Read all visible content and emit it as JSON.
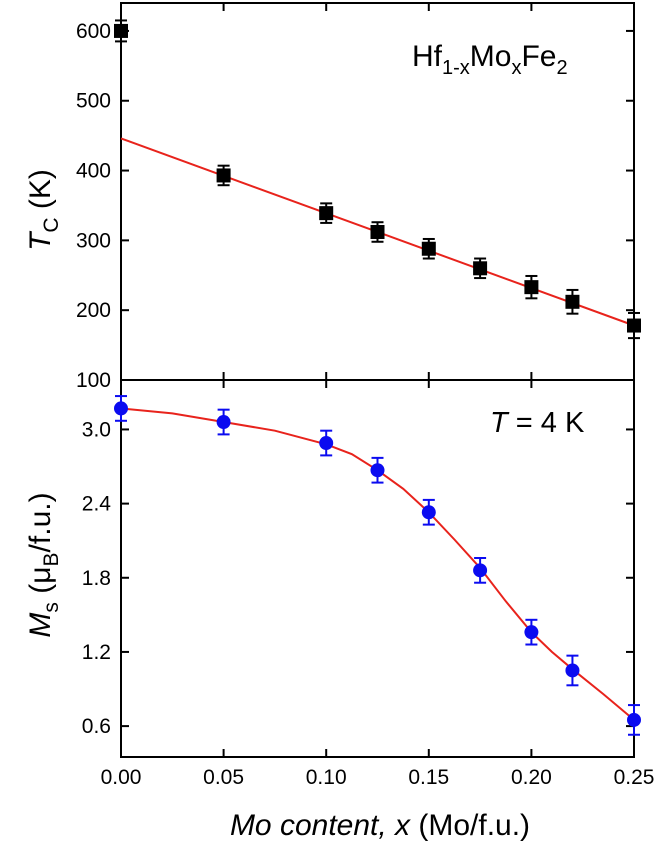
{
  "chart_data": [
    {
      "id": "top",
      "type": "scatter",
      "title": "",
      "annotation": {
        "main": "Hf",
        "sub1": "1-x",
        "mid": "Mo",
        "sub2": "x",
        "tail": "Fe",
        "sub3": "2"
      },
      "ylabel": {
        "italic": "T",
        "sub": "C",
        "rest": " (K)"
      },
      "ylim": [
        100,
        640
      ],
      "yticks": [
        100,
        200,
        300,
        400,
        500,
        600
      ],
      "ytick_labels": [
        "100",
        "200",
        "300",
        "400",
        "500",
        "600"
      ],
      "marker": "square",
      "marker_color": "#000000",
      "fit_color": "#e8231c",
      "series": [
        {
          "name": "T_C",
          "x": [
            0.0,
            0.05,
            0.1,
            0.125,
            0.15,
            0.175,
            0.2,
            0.22,
            0.25
          ],
          "y": [
            600,
            393,
            339,
            312,
            288,
            260,
            233,
            212,
            178
          ],
          "err": [
            15,
            14,
            14,
            14,
            14,
            14,
            16,
            17,
            18
          ]
        }
      ],
      "fit_line": {
        "x": [
          0.0,
          0.25
        ],
        "y": [
          446,
          178
        ]
      }
    },
    {
      "id": "bottom",
      "type": "scatter",
      "title": "",
      "annotation": {
        "italic": "T",
        "rest": " = 4 K"
      },
      "ylabel": {
        "italic": "M",
        "sub": "s",
        "open": " (μ",
        "sub2": "B",
        "close": "/f.u.)"
      },
      "ylim": [
        0.35,
        3.4
      ],
      "yticks": [
        0.6,
        1.2,
        1.8,
        2.4,
        3.0
      ],
      "ytick_labels": [
        "0.6",
        "1.2",
        "1.8",
        "2.4",
        "3.0"
      ],
      "marker": "circle",
      "marker_color": "#0b0bf0",
      "fit_color": "#e8231c",
      "series": [
        {
          "name": "M_s",
          "x": [
            0.0,
            0.05,
            0.1,
            0.125,
            0.15,
            0.175,
            0.2,
            0.22,
            0.25
          ],
          "y": [
            3.17,
            3.06,
            2.89,
            2.67,
            2.33,
            1.86,
            1.36,
            1.05,
            0.65
          ],
          "err": [
            0.1,
            0.1,
            0.1,
            0.1,
            0.1,
            0.1,
            0.1,
            0.12,
            0.12
          ]
        }
      ],
      "fit_curve": {
        "x": [
          0.0,
          0.025,
          0.05,
          0.075,
          0.1,
          0.1125,
          0.125,
          0.1375,
          0.15,
          0.1625,
          0.175,
          0.1875,
          0.2,
          0.21,
          0.22,
          0.235,
          0.25
        ],
        "y": [
          3.17,
          3.13,
          3.06,
          2.99,
          2.88,
          2.8,
          2.67,
          2.52,
          2.33,
          2.11,
          1.88,
          1.61,
          1.36,
          1.2,
          1.06,
          0.86,
          0.65
        ]
      }
    }
  ],
  "shared_x": {
    "xlim": [
      0.0,
      0.25
    ],
    "xticks": [
      0.0,
      0.05,
      0.1,
      0.15,
      0.2,
      0.25
    ],
    "xtick_labels": [
      "0.00",
      "0.05",
      "0.10",
      "0.15",
      "0.20",
      "0.25"
    ],
    "xlabel": {
      "italic": "Mo content, x",
      "rest": " (Mo/f.u.)"
    }
  }
}
